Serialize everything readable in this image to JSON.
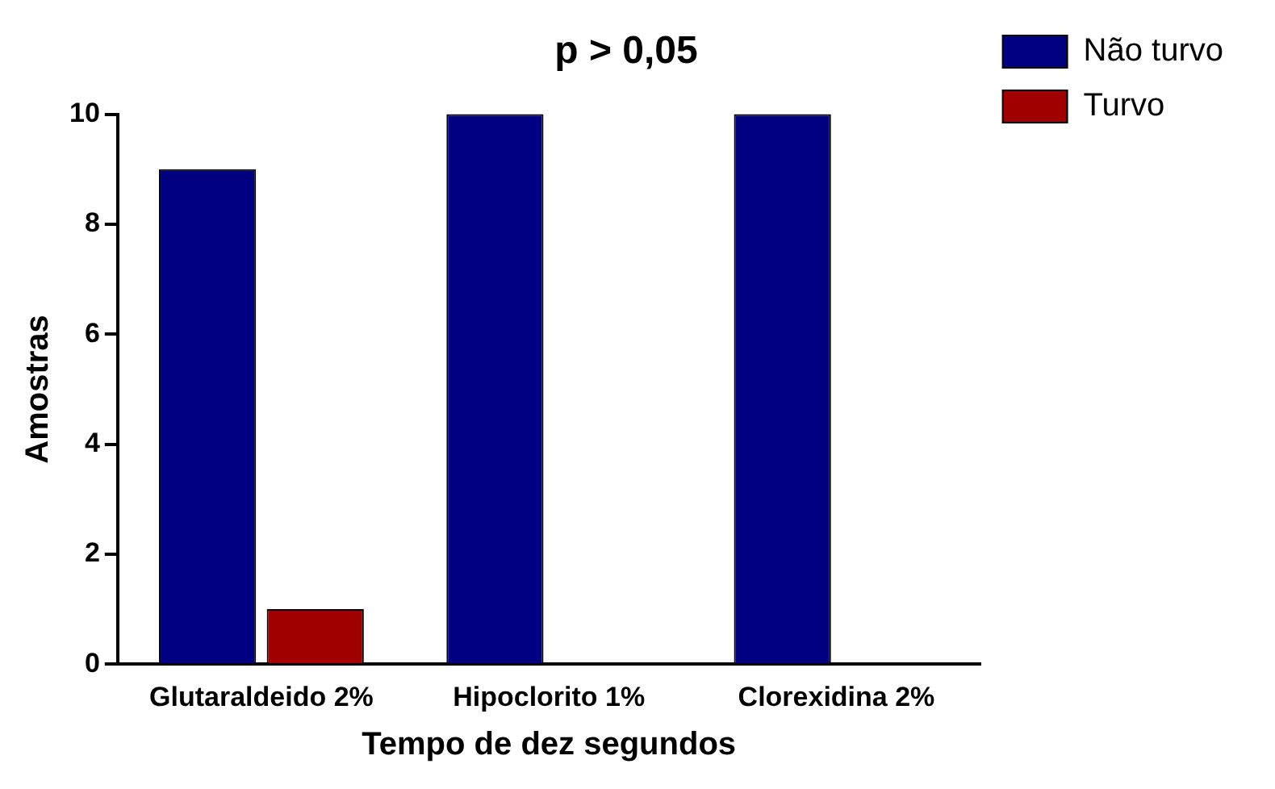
{
  "chart_data": {
    "type": "bar",
    "title": "p > 0,05",
    "xlabel": "Tempo de dez segundos",
    "ylabel": "Amostras",
    "categories": [
      "Glutaraldeido 2%",
      "Hipoclorito 1%",
      "Clorexidina 2%"
    ],
    "series": [
      {
        "name": "Não turvo",
        "color": "#000080",
        "values": [
          9,
          10,
          10
        ]
      },
      {
        "name": "Turvo",
        "color": "#a00000",
        "values": [
          1,
          0,
          0
        ]
      }
    ],
    "ylim": [
      0,
      10
    ],
    "yticks": [
      0,
      2,
      4,
      6,
      8,
      10
    ],
    "grid": false,
    "legend": "top right"
  }
}
